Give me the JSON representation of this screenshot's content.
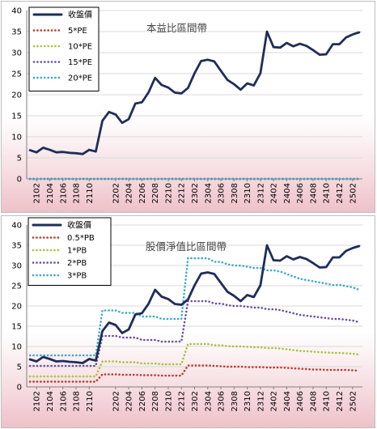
{
  "chart_data": [
    {
      "type": "line",
      "title": "本益比區間帶",
      "ylim": [
        0,
        40
      ],
      "yticks": [
        0,
        5,
        10,
        15,
        20,
        25,
        30,
        35,
        40
      ],
      "grid": true,
      "legend_position": "top-left",
      "x": [
        "2101",
        "2102",
        "2103",
        "2104",
        "2105",
        "2106",
        "2107",
        "2108",
        "2109",
        "2110",
        "2111",
        "2112",
        "2201",
        "2202",
        "2203",
        "2204",
        "2205",
        "2206",
        "2207",
        "2208",
        "2209",
        "2210",
        "2211",
        "2212",
        "2301",
        "2302",
        "2303",
        "2304",
        "2305",
        "2306",
        "2307",
        "2308",
        "2309",
        "2310",
        "2311",
        "2312",
        "2401",
        "2402",
        "2403",
        "2404",
        "2405",
        "2406",
        "2407",
        "2408",
        "2409",
        "2410",
        "2411",
        "2412",
        "2501",
        "2502",
        "2503"
      ],
      "x_tick_labels": [
        "2102",
        "2104",
        "2106",
        "2108",
        "2110",
        "2202",
        "2204",
        "2206",
        "2208",
        "2210",
        "2212",
        "2302",
        "2304",
        "2306",
        "2308",
        "2310",
        "2312",
        "2402",
        "2404",
        "2406",
        "2408",
        "2410",
        "2412",
        "2502"
      ],
      "series": [
        {
          "name": "收盤價",
          "color": "#1f2d5a",
          "style": "solid",
          "values": [
            6.8,
            6.3,
            7.4,
            6.9,
            6.3,
            6.4,
            6.2,
            6.1,
            5.9,
            6.9,
            6.5,
            13.8,
            15.9,
            15.3,
            13.3,
            14.2,
            17.9,
            18.2,
            20.5,
            24.0,
            22.3,
            21.7,
            20.5,
            20.3,
            21.6,
            25.1,
            28.0,
            28.3,
            27.9,
            25.7,
            23.5,
            22.5,
            21.2,
            22.7,
            22.2,
            25.1,
            35.0,
            31.3,
            31.2,
            32.3,
            31.5,
            32.1,
            31.6,
            30.6,
            29.5,
            29.6,
            32.0,
            32.0,
            33.6,
            34.3,
            34.8
          ]
        },
        {
          "name": "5*PE",
          "color": "#c0392b",
          "style": "dotted",
          "values": [
            0,
            0,
            0,
            0,
            0,
            0,
            0,
            0,
            0,
            0,
            0,
            0,
            0,
            0,
            0,
            0,
            0,
            0,
            0,
            0,
            0,
            0,
            0,
            0,
            0,
            0,
            0,
            0,
            0,
            0,
            0,
            0,
            0,
            0,
            0,
            0,
            0,
            0,
            0,
            0,
            0,
            0,
            0,
            0,
            0,
            0,
            0,
            0,
            0,
            0,
            0
          ]
        },
        {
          "name": "10*PE",
          "color": "#a9c33a",
          "style": "dotted",
          "values": [
            0,
            0,
            0,
            0,
            0,
            0,
            0,
            0,
            0,
            0,
            0,
            0,
            0,
            0,
            0,
            0,
            0,
            0,
            0,
            0,
            0,
            0,
            0,
            0,
            0,
            0,
            0,
            0,
            0,
            0,
            0,
            0,
            0,
            0,
            0,
            0,
            0,
            0,
            0,
            0,
            0,
            0,
            0,
            0,
            0,
            0,
            0,
            0,
            0,
            0,
            0
          ]
        },
        {
          "name": "15*PE",
          "color": "#6a4fa0",
          "style": "dotted",
          "values": [
            0,
            0,
            0,
            0,
            0,
            0,
            0,
            0,
            0,
            0,
            0,
            0,
            0,
            0,
            0,
            0,
            0,
            0,
            0,
            0,
            0,
            0,
            0,
            0,
            0,
            0,
            0,
            0,
            0,
            0,
            0,
            0,
            0,
            0,
            0,
            0,
            0,
            0,
            0,
            0,
            0,
            0,
            0,
            0,
            0,
            0,
            0,
            0,
            0,
            0,
            0
          ]
        },
        {
          "name": "20*PE",
          "color": "#3ba9c9",
          "style": "dotted",
          "values": [
            0,
            0,
            0,
            0,
            0,
            0,
            0,
            0,
            0,
            0,
            0,
            0,
            0,
            0,
            0,
            0,
            0,
            0,
            0,
            0,
            0,
            0,
            0,
            0,
            0,
            0,
            0,
            0,
            0,
            0,
            0,
            0,
            0,
            0,
            0,
            0,
            0,
            0,
            0,
            0,
            0,
            0,
            0,
            0,
            0,
            0,
            0,
            0,
            0,
            0,
            0
          ]
        }
      ]
    },
    {
      "type": "line",
      "title": "股價淨值比區間帶",
      "ylim": [
        0,
        40
      ],
      "yticks": [
        0,
        5,
        10,
        15,
        20,
        25,
        30,
        35,
        40
      ],
      "grid": true,
      "legend_position": "top-left",
      "x": [
        "2101",
        "2102",
        "2103",
        "2104",
        "2105",
        "2106",
        "2107",
        "2108",
        "2109",
        "2110",
        "2111",
        "2112",
        "2201",
        "2202",
        "2203",
        "2204",
        "2205",
        "2206",
        "2207",
        "2208",
        "2209",
        "2210",
        "2211",
        "2212",
        "2301",
        "2302",
        "2303",
        "2304",
        "2305",
        "2306",
        "2307",
        "2308",
        "2309",
        "2310",
        "2311",
        "2312",
        "2401",
        "2402",
        "2403",
        "2404",
        "2405",
        "2406",
        "2407",
        "2408",
        "2409",
        "2410",
        "2411",
        "2412",
        "2501",
        "2502",
        "2503"
      ],
      "x_tick_labels": [
        "2102",
        "2104",
        "2106",
        "2108",
        "2110",
        "2202",
        "2204",
        "2206",
        "2208",
        "2210",
        "2212",
        "2302",
        "2304",
        "2306",
        "2308",
        "2310",
        "2312",
        "2402",
        "2404",
        "2406",
        "2408",
        "2410",
        "2412",
        "2502"
      ],
      "series": [
        {
          "name": "收盤價",
          "color": "#1f2d5a",
          "style": "solid",
          "values": [
            6.8,
            6.3,
            7.4,
            6.9,
            6.3,
            6.4,
            6.2,
            6.1,
            5.9,
            6.9,
            6.5,
            13.8,
            15.9,
            15.3,
            13.3,
            14.2,
            17.9,
            18.2,
            20.5,
            24.0,
            22.3,
            21.7,
            20.5,
            20.3,
            21.6,
            25.1,
            28.0,
            28.3,
            27.9,
            25.7,
            23.5,
            22.5,
            21.2,
            22.7,
            22.2,
            25.1,
            35.0,
            31.3,
            31.2,
            32.3,
            31.5,
            32.1,
            31.6,
            30.6,
            29.5,
            29.6,
            32.0,
            32.0,
            33.6,
            34.3,
            34.8
          ]
        },
        {
          "name": "0.5*PB",
          "color": "#c0392b",
          "style": "dotted",
          "values": [
            1.3,
            1.3,
            1.3,
            1.3,
            1.3,
            1.3,
            1.3,
            1.3,
            1.3,
            1.3,
            1.3,
            3.1,
            3.1,
            3.1,
            3.0,
            3.0,
            3.0,
            2.9,
            2.9,
            2.9,
            2.8,
            2.8,
            2.8,
            2.8,
            5.3,
            5.3,
            5.3,
            5.3,
            5.2,
            5.1,
            5.0,
            5.0,
            5.0,
            4.9,
            4.9,
            4.9,
            4.8,
            4.8,
            4.8,
            4.7,
            4.6,
            4.5,
            4.4,
            4.3,
            4.3,
            4.2,
            4.2,
            4.2,
            4.2,
            4.1,
            4.0
          ]
        },
        {
          "name": "1*PB",
          "color": "#a9c33a",
          "style": "dotted",
          "values": [
            2.6,
            2.6,
            2.6,
            2.6,
            2.6,
            2.6,
            2.6,
            2.6,
            2.6,
            2.6,
            2.6,
            6.3,
            6.3,
            6.3,
            6.1,
            6.1,
            6.1,
            5.8,
            5.8,
            5.8,
            5.6,
            5.6,
            5.6,
            5.6,
            10.6,
            10.6,
            10.6,
            10.6,
            10.3,
            10.3,
            10.1,
            10.0,
            10.0,
            9.9,
            9.8,
            9.8,
            9.6,
            9.6,
            9.5,
            9.3,
            9.1,
            8.9,
            8.8,
            8.7,
            8.6,
            8.5,
            8.4,
            8.4,
            8.3,
            8.2,
            8.0
          ]
        },
        {
          "name": "2*PB",
          "color": "#6a4fa0",
          "style": "dotted",
          "values": [
            5.2,
            5.2,
            5.2,
            5.2,
            5.2,
            5.2,
            5.2,
            5.2,
            5.2,
            5.2,
            5.2,
            12.6,
            12.6,
            12.6,
            12.2,
            12.2,
            12.2,
            11.6,
            11.6,
            11.6,
            11.2,
            11.2,
            11.2,
            11.2,
            21.2,
            21.2,
            21.2,
            21.2,
            20.6,
            20.6,
            20.2,
            20.0,
            20.0,
            19.8,
            19.6,
            19.6,
            19.2,
            19.2,
            19.0,
            18.6,
            18.2,
            17.8,
            17.6,
            17.4,
            17.2,
            17.0,
            16.8,
            16.8,
            16.6,
            16.4,
            16.0
          ]
        },
        {
          "name": "3*PB",
          "color": "#3ba9c9",
          "style": "dotted",
          "values": [
            7.8,
            7.8,
            7.8,
            7.8,
            7.8,
            7.8,
            7.8,
            7.8,
            7.8,
            7.8,
            7.8,
            18.9,
            18.9,
            18.9,
            18.3,
            18.3,
            18.3,
            17.4,
            17.4,
            17.4,
            16.8,
            16.8,
            16.8,
            16.8,
            31.8,
            31.8,
            31.8,
            31.8,
            30.9,
            30.9,
            30.3,
            30.0,
            30.0,
            29.7,
            29.4,
            29.4,
            28.8,
            28.8,
            28.5,
            27.9,
            27.3,
            26.7,
            26.4,
            26.1,
            25.8,
            25.5,
            25.2,
            25.2,
            24.9,
            24.6,
            24.0
          ]
        }
      ]
    }
  ]
}
